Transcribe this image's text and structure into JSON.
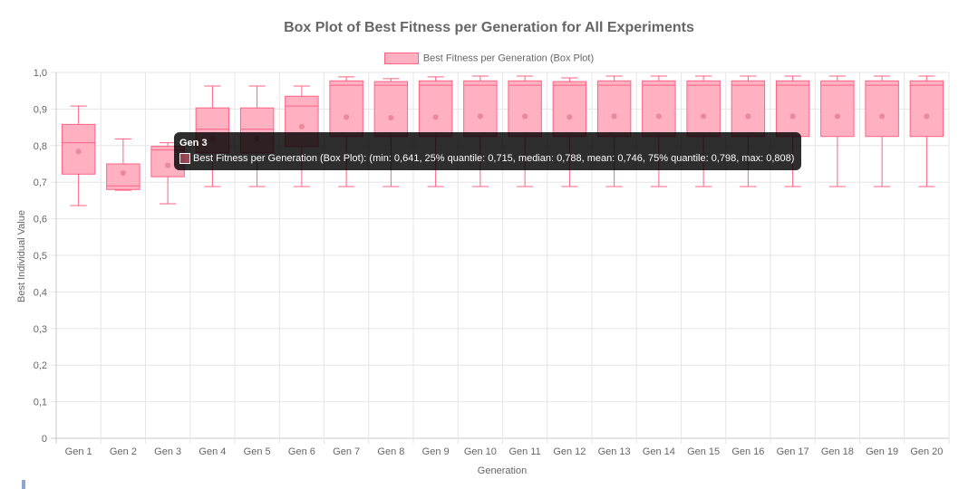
{
  "chart_data": {
    "type": "boxplot",
    "title": "Box Plot of Best Fitness per Generation for All Experiments",
    "xlabel": "Generation",
    "ylabel": "Best Individual Value",
    "ylim": [
      0,
      1
    ],
    "y_ticks": [
      "0",
      "0,1",
      "0,2",
      "0,3",
      "0,4",
      "0,5",
      "0,6",
      "0,7",
      "0,8",
      "0,9",
      "1,0"
    ],
    "legend_position": "top",
    "series_name": "Best Fitness per Generation (Box Plot)",
    "colors": {
      "fill": "#ffb1c1",
      "stroke": "#ff6384",
      "mean": "#e8899c"
    },
    "categories": [
      "Gen 1",
      "Gen 2",
      "Gen 3",
      "Gen 4",
      "Gen 5",
      "Gen 6",
      "Gen 7",
      "Gen 8",
      "Gen 9",
      "Gen 10",
      "Gen 11",
      "Gen 12",
      "Gen 13",
      "Gen 14",
      "Gen 15",
      "Gen 16",
      "Gen 17",
      "Gen 18",
      "Gen 19",
      "Gen 20"
    ],
    "boxes": [
      {
        "min": 0.636,
        "q1": 0.722,
        "median": 0.808,
        "mean": 0.784,
        "q3": 0.858,
        "max": 0.908
      },
      {
        "min": 0.678,
        "q1": 0.68,
        "median": 0.69,
        "mean": 0.725,
        "q3": 0.75,
        "max": 0.818
      },
      {
        "min": 0.641,
        "q1": 0.715,
        "median": 0.788,
        "mean": 0.746,
        "q3": 0.798,
        "max": 0.808
      },
      {
        "min": 0.688,
        "q1": 0.78,
        "median": 0.845,
        "mean": 0.82,
        "q3": 0.903,
        "max": 0.963
      },
      {
        "min": 0.688,
        "q1": 0.78,
        "median": 0.845,
        "mean": 0.82,
        "q3": 0.903,
        "max": 0.963
      },
      {
        "min": 0.688,
        "q1": 0.797,
        "median": 0.908,
        "mean": 0.852,
        "q3": 0.935,
        "max": 0.963
      },
      {
        "min": 0.688,
        "q1": 0.825,
        "median": 0.965,
        "mean": 0.878,
        "q3": 0.977,
        "max": 0.988
      },
      {
        "min": 0.688,
        "q1": 0.825,
        "median": 0.965,
        "mean": 0.876,
        "q3": 0.975,
        "max": 0.983
      },
      {
        "min": 0.688,
        "q1": 0.825,
        "median": 0.965,
        "mean": 0.878,
        "q3": 0.977,
        "max": 0.988
      },
      {
        "min": 0.688,
        "q1": 0.825,
        "median": 0.965,
        "mean": 0.88,
        "q3": 0.977,
        "max": 0.99
      },
      {
        "min": 0.688,
        "q1": 0.825,
        "median": 0.965,
        "mean": 0.88,
        "q3": 0.977,
        "max": 0.99
      },
      {
        "min": 0.688,
        "q1": 0.825,
        "median": 0.965,
        "mean": 0.878,
        "q3": 0.975,
        "max": 0.985
      },
      {
        "min": 0.688,
        "q1": 0.825,
        "median": 0.965,
        "mean": 0.88,
        "q3": 0.977,
        "max": 0.99
      },
      {
        "min": 0.688,
        "q1": 0.825,
        "median": 0.965,
        "mean": 0.88,
        "q3": 0.977,
        "max": 0.99
      },
      {
        "min": 0.688,
        "q1": 0.825,
        "median": 0.965,
        "mean": 0.88,
        "q3": 0.977,
        "max": 0.99
      },
      {
        "min": 0.688,
        "q1": 0.825,
        "median": 0.965,
        "mean": 0.88,
        "q3": 0.977,
        "max": 0.99
      },
      {
        "min": 0.688,
        "q1": 0.825,
        "median": 0.965,
        "mean": 0.88,
        "q3": 0.977,
        "max": 0.99
      },
      {
        "min": 0.688,
        "q1": 0.825,
        "median": 0.965,
        "mean": 0.88,
        "q3": 0.977,
        "max": 0.99
      },
      {
        "min": 0.688,
        "q1": 0.825,
        "median": 0.965,
        "mean": 0.88,
        "q3": 0.977,
        "max": 0.99
      },
      {
        "min": 0.688,
        "q1": 0.825,
        "median": 0.965,
        "mean": 0.88,
        "q3": 0.977,
        "max": 0.99
      }
    ],
    "tooltip": {
      "category": "Gen 3",
      "text": "Best Fitness per Generation (Box Plot): (min: 0,641, 25% quantile: 0,715, median: 0,788, mean: 0,746, 75% quantile: 0,798, max: 0,808)"
    }
  }
}
